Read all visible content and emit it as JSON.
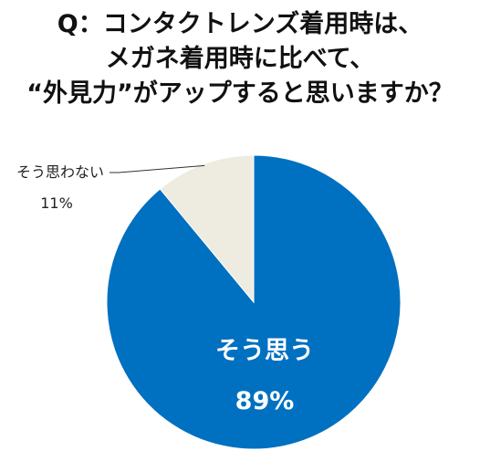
{
  "title": {
    "lines": [
      "Q：コンタクトレンズ着用時は、",
      "メガネ着用時に比べて、",
      "“外見力”がアップすると思いますか？"
    ]
  },
  "chart_data": {
    "type": "pie",
    "title": "Q：コンタクトレンズ着用時は、メガネ着用時に比べて、“外見力”がアップすると思いますか？",
    "start_angle_deg": 0,
    "direction": "clockwise",
    "slices": [
      {
        "label": "そう思う",
        "value": 89,
        "value_label": "89%",
        "color": "#0070c0",
        "label_position": "inside"
      },
      {
        "label": "そう思わない",
        "value": 11,
        "value_label": "11%",
        "color": "#eeece1",
        "label_position": "outside-left"
      }
    ]
  }
}
